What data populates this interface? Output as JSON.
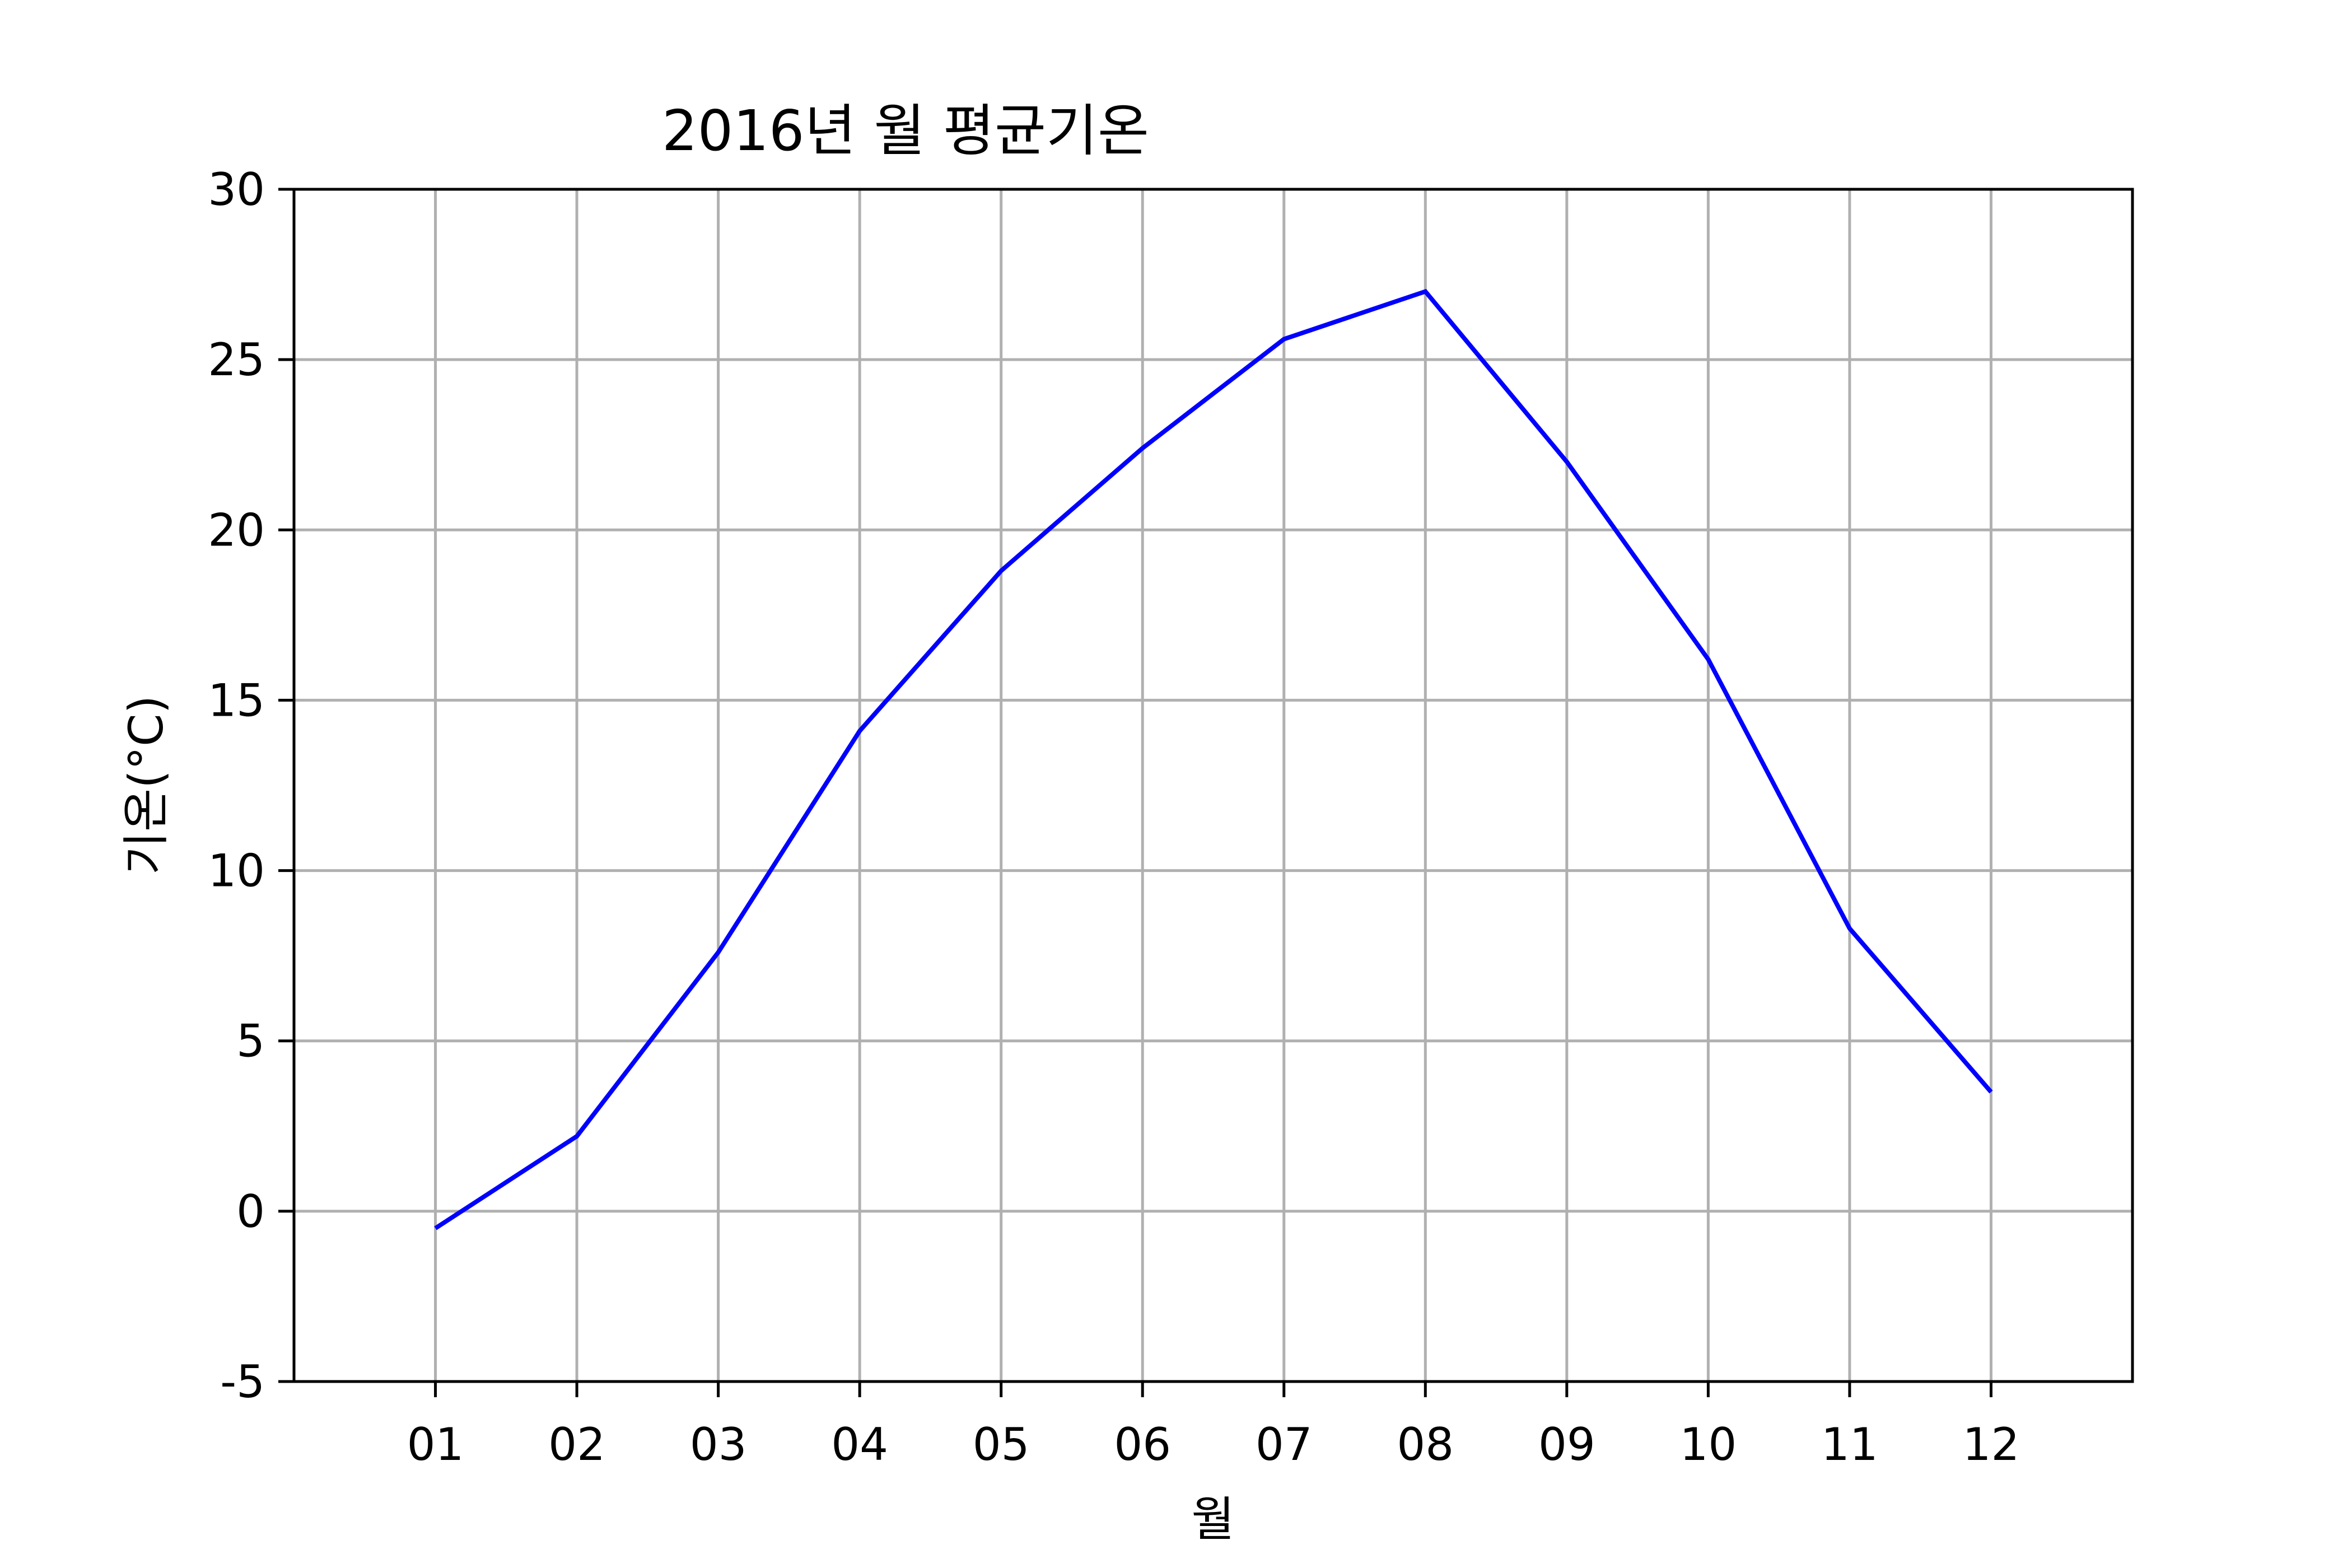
{
  "chart_data": {
    "type": "line",
    "title": "2016년 월 평균기온",
    "xlabel": "월",
    "ylabel": "기온(°C)",
    "categories": [
      "01",
      "02",
      "03",
      "04",
      "05",
      "06",
      "07",
      "08",
      "09",
      "10",
      "11",
      "12"
    ],
    "series": [
      {
        "values": [
          -0.5,
          2.2,
          7.6,
          14.1,
          18.8,
          22.4,
          25.6,
          27.0,
          22.0,
          16.2,
          8.3,
          3.5
        ],
        "color": "#0000ff"
      }
    ],
    "yticks": [
      -5,
      0,
      5,
      10,
      15,
      20,
      25,
      30
    ],
    "ytick_labels": [
      "-5",
      "0",
      "5",
      "10",
      "15",
      "20",
      "25",
      "30"
    ],
    "ylim": [
      -5,
      30
    ],
    "xlim": [
      0,
      13
    ],
    "grid": true,
    "legend": "none"
  }
}
